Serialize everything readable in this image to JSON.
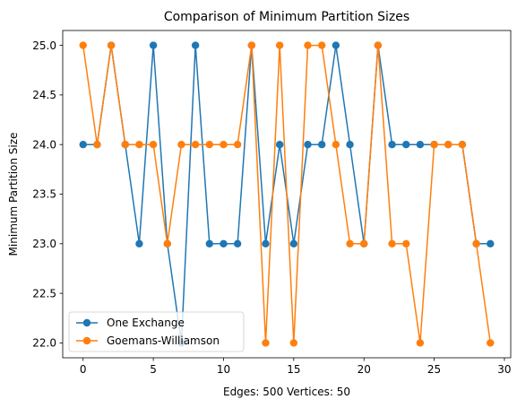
{
  "chart_data": {
    "type": "line",
    "title": "Comparison of Minimum Partition Sizes",
    "xlabel": "Edges: 500 Vertices: 50",
    "ylabel": "Minimum Partition Size",
    "xlim": [
      -1.45,
      30.45
    ],
    "ylim": [
      21.85,
      25.15
    ],
    "xticks": [
      0,
      5,
      10,
      15,
      20,
      25,
      30
    ],
    "yticks": [
      22.0,
      22.5,
      23.0,
      23.5,
      24.0,
      24.5,
      25.0
    ],
    "xtick_labels": [
      "0",
      "5",
      "10",
      "15",
      "20",
      "25",
      "30"
    ],
    "ytick_labels": [
      "22.0",
      "22.5",
      "23.0",
      "23.5",
      "24.0",
      "24.5",
      "25.0"
    ],
    "grid": false,
    "legend_position": "lower-left",
    "x": [
      0,
      1,
      2,
      3,
      4,
      5,
      6,
      7,
      8,
      9,
      10,
      11,
      12,
      13,
      14,
      15,
      16,
      17,
      18,
      19,
      20,
      21,
      22,
      23,
      24,
      25,
      26,
      27,
      28,
      29
    ],
    "series": [
      {
        "name": "One Exchange",
        "color": "#1f77b4",
        "values": [
          24,
          24,
          25,
          24,
          23,
          25,
          23,
          22,
          25,
          23,
          23,
          23,
          25,
          23,
          24,
          23,
          24,
          24,
          25,
          24,
          23,
          25,
          24,
          24,
          24,
          24,
          24,
          24,
          23,
          23
        ]
      },
      {
        "name": "Goemans-Williamson",
        "color": "#ff7f0e",
        "values": [
          25,
          24,
          25,
          24,
          24,
          24,
          23,
          24,
          24,
          24,
          24,
          24,
          25,
          22,
          25,
          22,
          25,
          25,
          24,
          23,
          23,
          25,
          23,
          23,
          22,
          24,
          24,
          24,
          23,
          22
        ]
      }
    ]
  }
}
